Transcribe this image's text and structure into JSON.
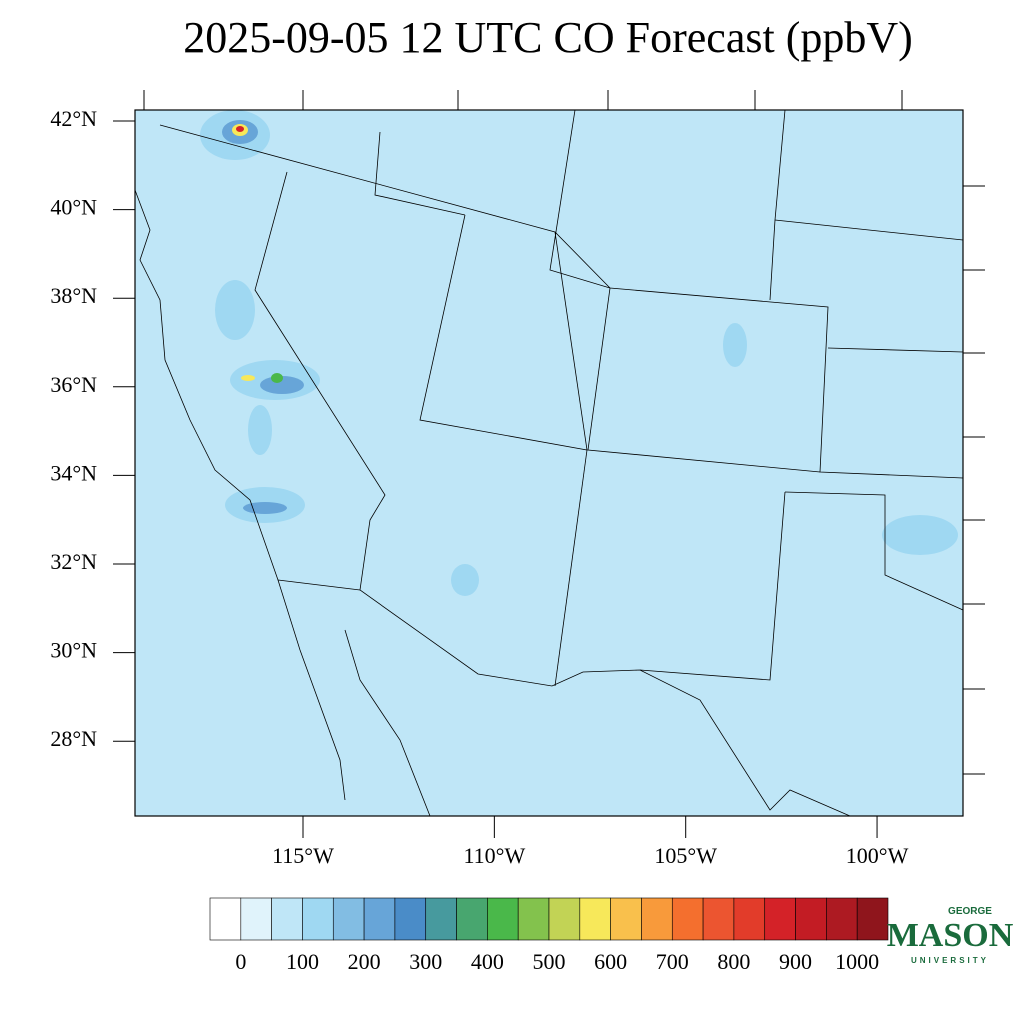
{
  "title": "2025-09-05 12 UTC CO Forecast (ppbV)",
  "map": {
    "latitude_ticks": [
      {
        "value": 42,
        "label": "42°N"
      },
      {
        "value": 40,
        "label": "40°N"
      },
      {
        "value": 38,
        "label": "38°N"
      },
      {
        "value": 36,
        "label": "36°N"
      },
      {
        "value": 34,
        "label": "34°N"
      },
      {
        "value": 32,
        "label": "32°N"
      },
      {
        "value": 30,
        "label": "30°N"
      },
      {
        "value": 28,
        "label": "28°N"
      }
    ],
    "longitude_ticks": [
      {
        "value": -115,
        "label": "115°W"
      },
      {
        "value": -110,
        "label": "110°W"
      },
      {
        "value": -105,
        "label": "105°W"
      },
      {
        "value": -100,
        "label": "100°W"
      }
    ]
  },
  "colorbar": {
    "colors": [
      "#ffffff",
      "#e0f3fb",
      "#bfe6f7",
      "#9fd8f2",
      "#82bde3",
      "#67a5d8",
      "#4a8cc8",
      "#479a9e",
      "#48a66f",
      "#4ab84a",
      "#83c24d",
      "#c2d355",
      "#f7e85a",
      "#f9c04c",
      "#f89a3b",
      "#f46f2e",
      "#ec5530",
      "#e23c2a",
      "#d42228",
      "#c31c24",
      "#ad1a22",
      "#8f151c"
    ],
    "ticks": [
      0,
      100,
      200,
      300,
      400,
      500,
      600,
      700,
      800,
      900,
      1000
    ]
  },
  "logo": {
    "top": "GEORGE",
    "name": "MASON",
    "bottom": "UNIVERSITY"
  }
}
